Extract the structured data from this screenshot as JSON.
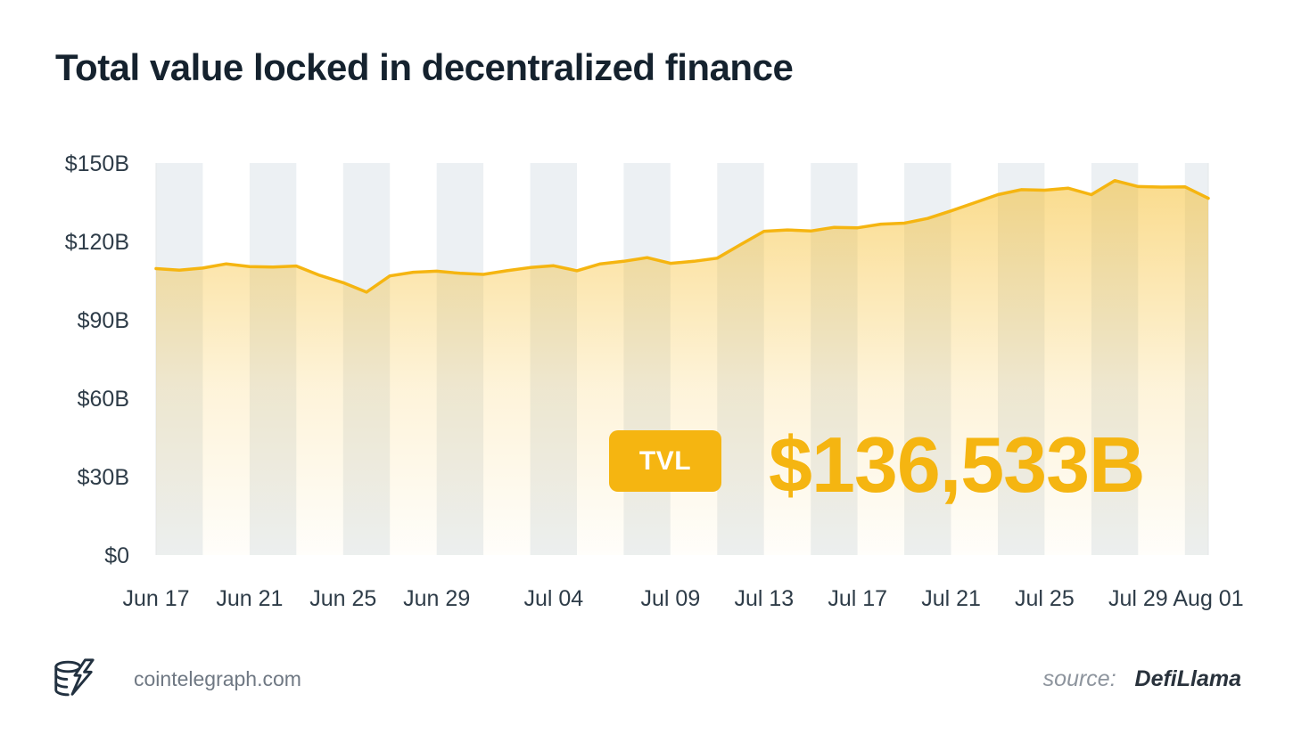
{
  "title": "Total value locked in decentralized finance",
  "tvl": {
    "badge_label": "TVL",
    "value": "$136,533B"
  },
  "footer": {
    "site": "cointelegraph.com",
    "source_label": "source:",
    "source_name": "DefiLlama"
  },
  "colors": {
    "accent_gold": "#F5B511",
    "stripe": "#ecf0f3",
    "plot_edge": "#e3e7ea",
    "axis_text": "#2e3c48",
    "title_text": "#15222e"
  },
  "chart_data": {
    "type": "area",
    "title": "Total value locked in decentralized finance",
    "unit": "billions USD",
    "xlabel": "",
    "ylabel": "",
    "ylim": [
      0,
      150
    ],
    "grid": "alternating vertical bands",
    "legend": "none",
    "line_color": "#F5B511",
    "y_ticks": [
      {
        "label": "$0",
        "value": 0
      },
      {
        "label": "$30B",
        "value": 30
      },
      {
        "label": "$60B",
        "value": 60
      },
      {
        "label": "$90B",
        "value": 90
      },
      {
        "label": "$120B",
        "value": 120
      },
      {
        "label": "$150B",
        "value": 150
      }
    ],
    "x_ticks": [
      {
        "label": "Jun 17",
        "day": 0
      },
      {
        "label": "Jun 21",
        "day": 4
      },
      {
        "label": "Jun 25",
        "day": 8
      },
      {
        "label": "Jun 29",
        "day": 12
      },
      {
        "label": "Jul 04",
        "day": 17
      },
      {
        "label": "Jul 09",
        "day": 22
      },
      {
        "label": "Jul 13",
        "day": 26
      },
      {
        "label": "Jul 17",
        "day": 30
      },
      {
        "label": "Jul 21",
        "day": 34
      },
      {
        "label": "Jul 25",
        "day": 38
      },
      {
        "label": "Jul 29",
        "day": 42
      },
      {
        "label": "Aug 01",
        "day": 45
      }
    ],
    "x": [
      "Jun 17",
      "Jun 18",
      "Jun 19",
      "Jun 20",
      "Jun 21",
      "Jun 22",
      "Jun 23",
      "Jun 24",
      "Jun 25",
      "Jun 26",
      "Jun 27",
      "Jun 28",
      "Jun 29",
      "Jun 30",
      "Jul 01",
      "Jul 02",
      "Jul 03",
      "Jul 04",
      "Jul 05",
      "Jul 06",
      "Jul 07",
      "Jul 08",
      "Jul 09",
      "Jul 10",
      "Jul 11",
      "Jul 12",
      "Jul 13",
      "Jul 14",
      "Jul 15",
      "Jul 16",
      "Jul 17",
      "Jul 18",
      "Jul 19",
      "Jul 20",
      "Jul 21",
      "Jul 22",
      "Jul 23",
      "Jul 24",
      "Jul 25",
      "Jul 26",
      "Jul 27",
      "Jul 28",
      "Jul 29",
      "Jul 30",
      "Jul 31",
      "Aug 01"
    ],
    "values": [
      109.6,
      109.0,
      109.8,
      111.4,
      110.4,
      110.2,
      110.6,
      107.0,
      104.2,
      100.6,
      106.8,
      108.2,
      108.6,
      107.8,
      107.4,
      108.8,
      110.0,
      110.7,
      108.8,
      111.4,
      112.4,
      113.8,
      111.6,
      112.4,
      113.6,
      118.8,
      123.9,
      124.4,
      124.0,
      125.4,
      125.2,
      126.6,
      127.0,
      128.8,
      131.7,
      134.8,
      137.9,
      139.8,
      139.6,
      140.4,
      137.9,
      143.3,
      141.0,
      140.8,
      140.9,
      136.5
    ],
    "last_value_label": "$136,533B"
  }
}
